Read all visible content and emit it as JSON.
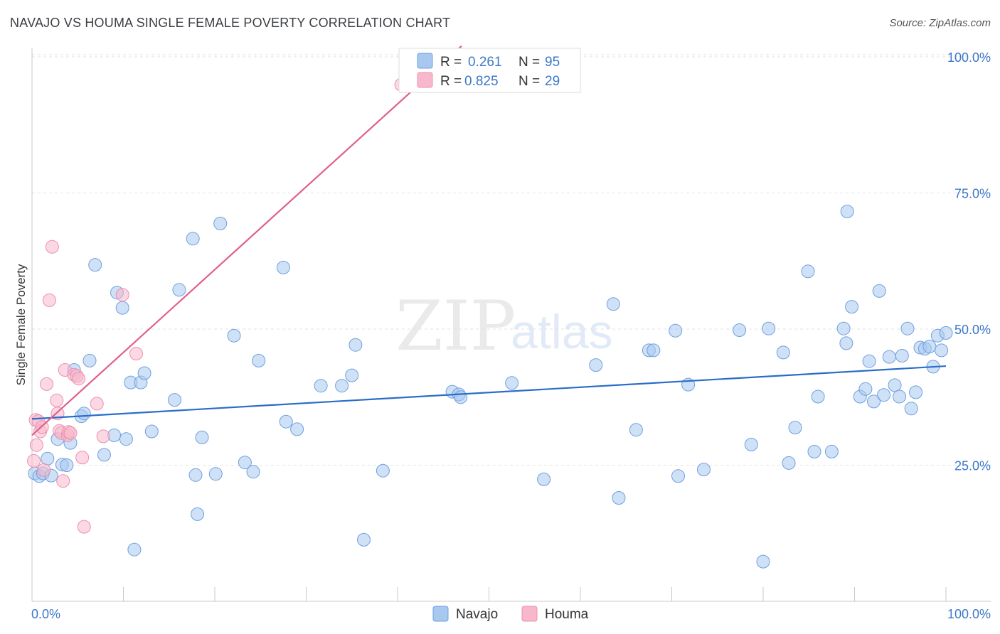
{
  "header": {
    "title": "NAVAJO VS HOUMA SINGLE FEMALE POVERTY CORRELATION CHART",
    "source": "Source: ZipAtlas.com"
  },
  "watermark": {
    "zip": "ZIP",
    "atlas": "atlas"
  },
  "colors": {
    "navajo_fill": "#a8c8f0",
    "navajo_stroke": "#6fa0dc",
    "navajo_line": "#2a6dc8",
    "houma_fill": "#f7b8cc",
    "houma_stroke": "#ec8fad",
    "houma_line": "#e0608a",
    "value_text": "#3d78c8"
  },
  "stats_legend": {
    "rows": [
      {
        "r_label": "R =",
        "r_value": "0.261",
        "n_label": "N =",
        "n_value": "95"
      },
      {
        "r_label": "R =",
        "r_value": "0.825",
        "n_label": "N =",
        "n_value": "29"
      }
    ]
  },
  "bottom_legend": {
    "items": [
      "Navajo",
      "Houma"
    ]
  },
  "chart_data": {
    "type": "scatter",
    "title": "NAVAJO VS HOUMA SINGLE FEMALE POVERTY CORRELATION CHART",
    "xlabel": "",
    "ylabel": "Single Female Poverty",
    "xlim": [
      0,
      100
    ],
    "ylim": [
      0,
      102
    ],
    "x_tick_labels": [
      "0.0%",
      "100.0%"
    ],
    "y_ticks": [
      {
        "value": 25,
        "label": "25.0%"
      },
      {
        "value": 50,
        "label": "50.0%"
      },
      {
        "value": 75,
        "label": "75.0%"
      },
      {
        "value": 100,
        "label": "100.0%"
      }
    ],
    "grid": true,
    "series": [
      {
        "name": "Navajo",
        "regression": {
          "x": [
            0,
            100
          ],
          "y": [
            33.5,
            43.2
          ]
        },
        "points": [
          [
            0.3,
            23.5
          ],
          [
            0.8,
            23.0
          ],
          [
            1.2,
            23.5
          ],
          [
            1.7,
            26.2
          ],
          [
            2.1,
            23.1
          ],
          [
            2.8,
            29.8
          ],
          [
            3.3,
            25.1
          ],
          [
            3.8,
            25.0
          ],
          [
            4.2,
            29.1
          ],
          [
            4.6,
            42.5
          ],
          [
            5.4,
            34.0
          ],
          [
            5.7,
            34.5
          ],
          [
            6.3,
            44.2
          ],
          [
            6.9,
            61.8
          ],
          [
            7.9,
            26.9
          ],
          [
            9.0,
            30.5
          ],
          [
            9.3,
            56.7
          ],
          [
            9.9,
            53.9
          ],
          [
            10.3,
            29.8
          ],
          [
            10.8,
            40.2
          ],
          [
            11.2,
            9.5
          ],
          [
            11.9,
            40.2
          ],
          [
            12.3,
            41.9
          ],
          [
            13.1,
            31.2
          ],
          [
            15.6,
            37.0
          ],
          [
            16.1,
            57.2
          ],
          [
            17.9,
            23.2
          ],
          [
            18.1,
            16.0
          ],
          [
            18.6,
            30.1
          ],
          [
            17.6,
            66.6
          ],
          [
            20.1,
            23.4
          ],
          [
            20.6,
            69.4
          ],
          [
            22.1,
            48.8
          ],
          [
            23.3,
            25.5
          ],
          [
            24.2,
            23.8
          ],
          [
            24.8,
            44.2
          ],
          [
            27.5,
            61.3
          ],
          [
            27.8,
            33.0
          ],
          [
            29.0,
            31.6
          ],
          [
            31.6,
            39.6
          ],
          [
            33.9,
            39.6
          ],
          [
            35.0,
            41.5
          ],
          [
            35.4,
            47.1
          ],
          [
            36.3,
            11.3
          ],
          [
            38.4,
            24.0
          ],
          [
            46.0,
            38.5
          ],
          [
            46.7,
            38.0
          ],
          [
            46.9,
            37.5
          ],
          [
            52.5,
            40.1
          ],
          [
            56.0,
            22.4
          ],
          [
            61.7,
            43.4
          ],
          [
            63.6,
            54.6
          ],
          [
            64.2,
            19.0
          ],
          [
            66.1,
            31.5
          ],
          [
            67.5,
            46.1
          ],
          [
            68.0,
            46.1
          ],
          [
            70.4,
            49.7
          ],
          [
            70.7,
            23.0
          ],
          [
            71.8,
            39.8
          ],
          [
            73.5,
            24.2
          ],
          [
            77.4,
            49.8
          ],
          [
            78.7,
            28.8
          ],
          [
            80.0,
            7.3
          ],
          [
            80.6,
            50.1
          ],
          [
            82.2,
            45.7
          ],
          [
            82.8,
            25.4
          ],
          [
            83.5,
            31.9
          ],
          [
            84.9,
            60.6
          ],
          [
            85.6,
            27.5
          ],
          [
            86.0,
            37.6
          ],
          [
            87.5,
            27.5
          ],
          [
            88.8,
            50.1
          ],
          [
            89.1,
            47.4
          ],
          [
            89.2,
            71.6
          ],
          [
            89.7,
            54.1
          ],
          [
            90.6,
            37.6
          ],
          [
            91.2,
            39.0
          ],
          [
            91.6,
            44.1
          ],
          [
            92.1,
            36.7
          ],
          [
            92.7,
            57.0
          ],
          [
            93.2,
            37.9
          ],
          [
            93.8,
            44.9
          ],
          [
            94.4,
            39.7
          ],
          [
            94.9,
            37.6
          ],
          [
            95.2,
            45.1
          ],
          [
            95.8,
            50.1
          ],
          [
            96.2,
            35.4
          ],
          [
            96.7,
            38.4
          ],
          [
            97.2,
            46.6
          ],
          [
            97.7,
            46.4
          ],
          [
            98.2,
            46.8
          ],
          [
            98.6,
            43.1
          ],
          [
            99.1,
            48.8
          ],
          [
            99.5,
            46.1
          ],
          [
            100.0,
            49.3
          ]
        ]
      },
      {
        "name": "Houma",
        "regression": {
          "x": [
            0,
            47
          ],
          "y": [
            30.5,
            102
          ]
        },
        "points": [
          [
            0.2,
            25.8
          ],
          [
            0.4,
            33.3
          ],
          [
            0.5,
            28.7
          ],
          [
            0.7,
            33.1
          ],
          [
            0.9,
            31.2
          ],
          [
            1.1,
            32.0
          ],
          [
            1.3,
            24.1
          ],
          [
            1.6,
            39.9
          ],
          [
            1.9,
            55.3
          ],
          [
            2.2,
            65.1
          ],
          [
            2.7,
            36.9
          ],
          [
            2.8,
            34.5
          ],
          [
            3.0,
            31.3
          ],
          [
            3.2,
            30.9
          ],
          [
            3.4,
            22.1
          ],
          [
            3.6,
            42.5
          ],
          [
            3.9,
            30.5
          ],
          [
            4.0,
            31.1
          ],
          [
            4.2,
            30.9
          ],
          [
            4.6,
            41.6
          ],
          [
            4.9,
            41.4
          ],
          [
            5.1,
            40.9
          ],
          [
            5.5,
            26.4
          ],
          [
            5.7,
            13.7
          ],
          [
            7.1,
            36.3
          ],
          [
            7.8,
            30.3
          ],
          [
            9.9,
            56.3
          ],
          [
            11.4,
            45.5
          ],
          [
            40.4,
            94.9
          ]
        ]
      }
    ]
  }
}
